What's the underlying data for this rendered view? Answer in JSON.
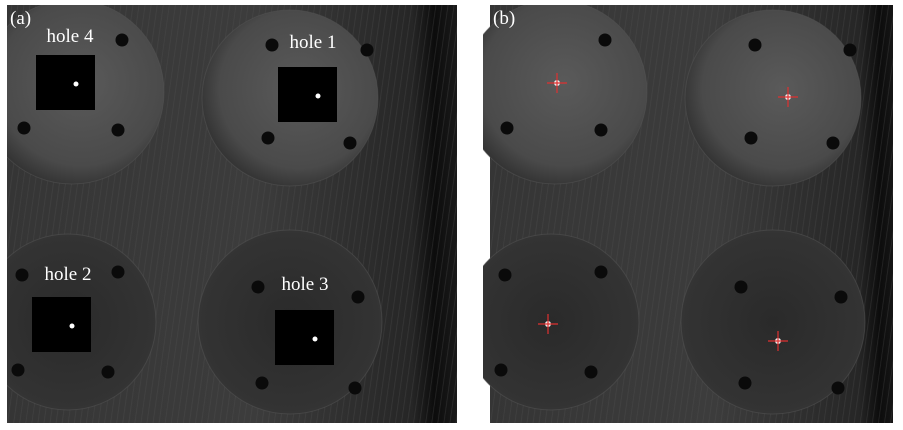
{
  "panels": [
    {
      "label": "(a)",
      "holes": [
        "hole 4",
        "hole 1",
        "hole 2",
        "hole 3"
      ]
    },
    {
      "label": "(b)"
    }
  ]
}
